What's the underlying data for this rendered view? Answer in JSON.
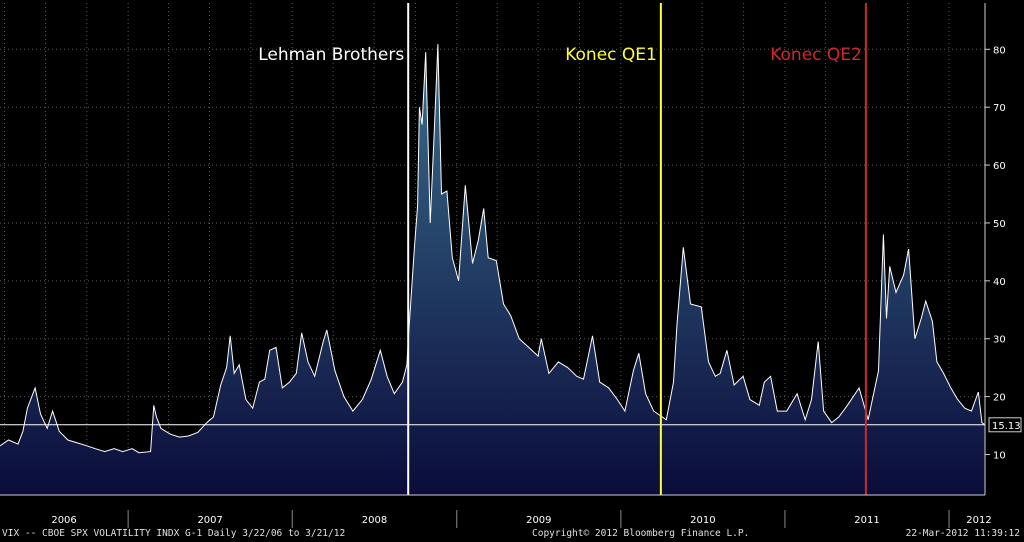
{
  "chart_data": {
    "type": "area",
    "title": "",
    "xlabel": "",
    "ylabel": "",
    "xlim": [
      "2006-03-22",
      "2012-03-21"
    ],
    "ylim": [
      3,
      88
    ],
    "y_ticks": [
      10,
      20,
      30,
      40,
      50,
      60,
      70,
      80
    ],
    "x_year_labels": [
      "2006",
      "2007",
      "2008",
      "2009",
      "2010",
      "2011",
      "2012"
    ],
    "grid": true,
    "last_value_label": "15.13",
    "reference_line": 15.13,
    "series": [
      {
        "name": "VIX -- CBOE SPX VOLATILITY INDX",
        "color": "#ffffff",
        "fill_top": "#3a6f8f",
        "fill_bottom": "#0b0c3a",
        "points": [
          [
            "2006-03-22",
            11.5
          ],
          [
            "2006-04-10",
            12.5
          ],
          [
            "2006-05-01",
            11.8
          ],
          [
            "2006-05-12",
            14.0
          ],
          [
            "2006-05-22",
            18.0
          ],
          [
            "2006-06-08",
            21.5
          ],
          [
            "2006-06-20",
            17.0
          ],
          [
            "2006-07-05",
            14.5
          ],
          [
            "2006-07-17",
            17.5
          ],
          [
            "2006-08-01",
            14.0
          ],
          [
            "2006-08-20",
            12.5
          ],
          [
            "2006-09-10",
            12.0
          ],
          [
            "2006-10-01",
            11.5
          ],
          [
            "2006-10-20",
            11.0
          ],
          [
            "2006-11-10",
            10.5
          ],
          [
            "2006-12-01",
            11.0
          ],
          [
            "2006-12-20",
            10.5
          ],
          [
            "2007-01-10",
            11.0
          ],
          [
            "2007-01-25",
            10.3
          ],
          [
            "2007-02-20",
            10.5
          ],
          [
            "2007-02-27",
            18.5
          ],
          [
            "2007-03-05",
            16.5
          ],
          [
            "2007-03-15",
            14.5
          ],
          [
            "2007-04-05",
            13.5
          ],
          [
            "2007-04-25",
            13.0
          ],
          [
            "2007-05-15",
            13.2
          ],
          [
            "2007-06-05",
            13.8
          ],
          [
            "2007-06-25",
            15.5
          ],
          [
            "2007-07-10",
            16.5
          ],
          [
            "2007-07-26",
            22.0
          ],
          [
            "2007-08-08",
            25.0
          ],
          [
            "2007-08-16",
            30.5
          ],
          [
            "2007-08-25",
            24.0
          ],
          [
            "2007-09-05",
            25.5
          ],
          [
            "2007-09-20",
            19.5
          ],
          [
            "2007-10-05",
            18.0
          ],
          [
            "2007-10-20",
            22.5
          ],
          [
            "2007-11-01",
            23.0
          ],
          [
            "2007-11-12",
            28.0
          ],
          [
            "2007-11-26",
            28.5
          ],
          [
            "2007-12-10",
            21.5
          ],
          [
            "2007-12-26",
            22.5
          ],
          [
            "2008-01-10",
            24.0
          ],
          [
            "2008-01-22",
            31.0
          ],
          [
            "2008-02-05",
            26.0
          ],
          [
            "2008-02-20",
            23.5
          ],
          [
            "2008-03-10",
            29.5
          ],
          [
            "2008-03-18",
            31.5
          ],
          [
            "2008-04-05",
            24.5
          ],
          [
            "2008-04-25",
            20.0
          ],
          [
            "2008-05-15",
            17.5
          ],
          [
            "2008-06-05",
            19.5
          ],
          [
            "2008-06-25",
            23.0
          ],
          [
            "2008-07-15",
            28.0
          ],
          [
            "2008-07-30",
            23.5
          ],
          [
            "2008-08-15",
            20.5
          ],
          [
            "2008-09-02",
            22.5
          ],
          [
            "2008-09-12",
            25.5
          ],
          [
            "2008-09-16",
            31.0
          ],
          [
            "2008-09-29",
            46.0
          ],
          [
            "2008-10-06",
            53.0
          ],
          [
            "2008-10-10",
            70.0
          ],
          [
            "2008-10-16",
            67.0
          ],
          [
            "2008-10-24",
            79.5
          ],
          [
            "2008-11-03",
            50.0
          ],
          [
            "2008-11-12",
            66.0
          ],
          [
            "2008-11-20",
            80.9
          ],
          [
            "2008-11-28",
            55.0
          ],
          [
            "2008-12-10",
            55.5
          ],
          [
            "2008-12-22",
            44.0
          ],
          [
            "2009-01-05",
            40.0
          ],
          [
            "2009-01-20",
            56.5
          ],
          [
            "2009-02-05",
            43.0
          ],
          [
            "2009-02-18",
            47.0
          ],
          [
            "2009-03-02",
            52.5
          ],
          [
            "2009-03-12",
            44.0
          ],
          [
            "2009-03-30",
            43.5
          ],
          [
            "2009-04-15",
            36.0
          ],
          [
            "2009-05-01",
            34.0
          ],
          [
            "2009-05-20",
            30.0
          ],
          [
            "2009-06-10",
            28.5
          ],
          [
            "2009-07-01",
            27.0
          ],
          [
            "2009-07-08",
            30.0
          ],
          [
            "2009-07-25",
            24.0
          ],
          [
            "2009-08-15",
            26.0
          ],
          [
            "2009-09-05",
            25.0
          ],
          [
            "2009-09-25",
            23.5
          ],
          [
            "2009-10-10",
            23.0
          ],
          [
            "2009-10-30",
            30.5
          ],
          [
            "2009-11-15",
            22.5
          ],
          [
            "2009-12-05",
            21.5
          ],
          [
            "2009-12-24",
            19.5
          ],
          [
            "2010-01-10",
            17.5
          ],
          [
            "2010-01-29",
            24.5
          ],
          [
            "2010-02-10",
            27.5
          ],
          [
            "2010-02-25",
            20.5
          ],
          [
            "2010-03-15",
            17.5
          ],
          [
            "2010-04-12",
            16.0
          ],
          [
            "2010-04-28",
            22.5
          ],
          [
            "2010-05-06",
            32.5
          ],
          [
            "2010-05-20",
            45.8
          ],
          [
            "2010-06-05",
            36.0
          ],
          [
            "2010-06-29",
            35.5
          ],
          [
            "2010-07-15",
            26.0
          ],
          [
            "2010-07-30",
            23.5
          ],
          [
            "2010-08-10",
            24.0
          ],
          [
            "2010-08-25",
            28.0
          ],
          [
            "2010-09-10",
            22.0
          ],
          [
            "2010-09-30",
            23.5
          ],
          [
            "2010-10-15",
            19.5
          ],
          [
            "2010-11-05",
            18.5
          ],
          [
            "2010-11-16",
            22.5
          ],
          [
            "2010-11-30",
            23.5
          ],
          [
            "2010-12-15",
            17.5
          ],
          [
            "2011-01-05",
            17.5
          ],
          [
            "2011-01-28",
            20.5
          ],
          [
            "2011-02-15",
            16.0
          ],
          [
            "2011-03-01",
            19.5
          ],
          [
            "2011-03-16",
            29.5
          ],
          [
            "2011-03-28",
            17.5
          ],
          [
            "2011-04-15",
            15.5
          ],
          [
            "2011-05-01",
            16.5
          ],
          [
            "2011-05-20",
            18.5
          ],
          [
            "2011-06-15",
            21.5
          ],
          [
            "2011-07-05",
            16.0
          ],
          [
            "2011-07-28",
            24.5
          ],
          [
            "2011-08-08",
            48.0
          ],
          [
            "2011-08-15",
            33.5
          ],
          [
            "2011-08-22",
            42.5
          ],
          [
            "2011-09-05",
            38.0
          ],
          [
            "2011-09-22",
            41.0
          ],
          [
            "2011-10-03",
            45.5
          ],
          [
            "2011-10-17",
            30.0
          ],
          [
            "2011-10-31",
            33.5
          ],
          [
            "2011-11-10",
            36.5
          ],
          [
            "2011-11-25",
            33.0
          ],
          [
            "2011-12-05",
            26.0
          ],
          [
            "2011-12-20",
            24.0
          ],
          [
            "2012-01-05",
            21.5
          ],
          [
            "2012-01-20",
            19.5
          ],
          [
            "2012-02-05",
            18.0
          ],
          [
            "2012-02-20",
            17.5
          ],
          [
            "2012-03-06",
            20.8
          ],
          [
            "2012-03-14",
            15.5
          ],
          [
            "2012-03-21",
            15.13
          ]
        ]
      }
    ],
    "annotations": [
      {
        "label": "Lehman Brothers",
        "date": "2008-09-15",
        "color": "#ffffff"
      },
      {
        "label": "Konec QE1",
        "date": "2010-03-31",
        "color": "#ffff33"
      },
      {
        "label": "Konec QE2",
        "date": "2011-06-30",
        "color": "#d0282d"
      }
    ]
  },
  "footer": {
    "left": "VIX -- CBOE SPX VOLATILITY INDX   G-1  Daily  3/22/06 to 3/21/12",
    "middle": "Copyright© 2012 Bloomberg Finance L.P.",
    "right": "22-Mar-2012 11:39:12"
  }
}
